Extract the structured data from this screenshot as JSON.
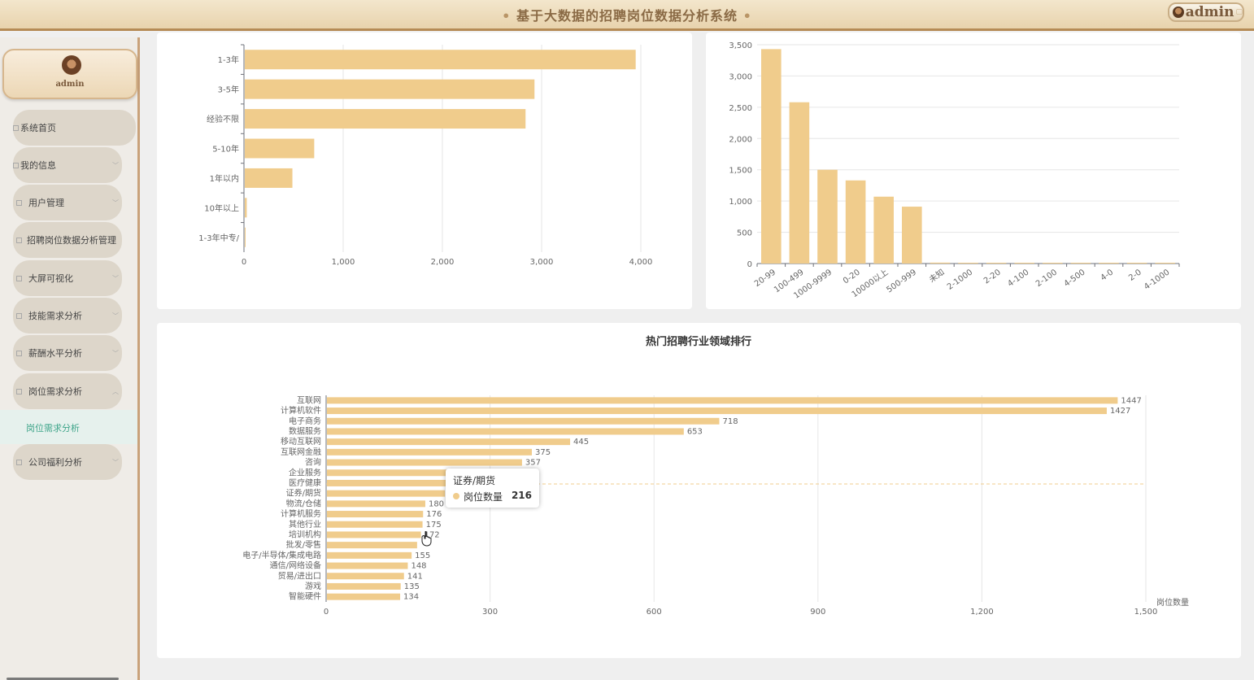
{
  "header": {
    "title": "基于大数据的招聘岗位数据分析系统",
    "dot": "•",
    "user": "admin",
    "user_caret": "▢"
  },
  "sidebar": {
    "user": {
      "name": "admin"
    },
    "menu": [
      {
        "label": "系统首页",
        "chevron": ""
      },
      {
        "label": "我的信息",
        "chevron": "﹀"
      },
      {
        "label": "用户管理",
        "chevron": "﹀"
      },
      {
        "label": "招聘岗位数据分析管理",
        "chevron": ""
      },
      {
        "label": "大屏可视化",
        "chevron": "﹀"
      },
      {
        "label": "技能需求分析",
        "chevron": "﹀"
      },
      {
        "label": "薪酬水平分析",
        "chevron": "﹀"
      },
      {
        "label": "岗位需求分析",
        "chevron": "︿"
      },
      {
        "label": "公司福利分析",
        "chevron": "﹀"
      }
    ],
    "submenu": {
      "label": "岗位需求分析"
    }
  },
  "colors": {
    "bar": "#f0cc8c",
    "accent": "#3fa58a"
  },
  "chart_data": [
    {
      "type": "bar",
      "orientation": "horizontal",
      "title": "",
      "categories": [
        "1-3年",
        "3-5年",
        "经验不限",
        "5-10年",
        "1年以内",
        "10年以上",
        "1-3年中专/"
      ],
      "values": [
        3940,
        2920,
        2830,
        700,
        480,
        20,
        8
      ],
      "xlim": [
        0,
        4000
      ],
      "ticks": [
        "0",
        "1,000",
        "2,000",
        "3,000",
        "4,000"
      ],
      "tick_values": [
        0,
        1000,
        2000,
        3000,
        4000
      ]
    },
    {
      "type": "bar",
      "title": "",
      "categories": [
        "20-99",
        "100-499",
        "1000-9999",
        "0-20",
        "10000以上",
        "500-999",
        "未知",
        "2-1000",
        "2-20",
        "4-100",
        "2-100",
        "4-500",
        "4-0",
        "2-0",
        "4-1000"
      ],
      "values": [
        3430,
        2580,
        1500,
        1330,
        1070,
        910,
        15,
        8,
        6,
        5,
        4,
        3,
        2,
        2,
        1
      ],
      "ylim": [
        0,
        3500
      ],
      "ticks": [
        "0",
        "500",
        "1,000",
        "1,500",
        "2,000",
        "2,500",
        "3,000",
        "3,500"
      ],
      "tick_values": [
        0,
        500,
        1000,
        1500,
        2000,
        2500,
        3000,
        3500
      ]
    },
    {
      "type": "bar",
      "orientation": "horizontal",
      "title": "热门招聘行业领域排行",
      "xlabel": "岗位数量",
      "series_name": "岗位数量",
      "categories": [
        "互联网",
        "计算机软件",
        "电子商务",
        "数据服务",
        "移动互联网",
        "互联网金融",
        "咨询",
        "企业服务",
        "医疗健康",
        "证券/期货",
        "物流/仓储",
        "计算机服务",
        "其他行业",
        "培训机构",
        "批发/零售",
        "电子/半导体/集成电路",
        "通信/网络设备",
        "贸易/进出口",
        "游戏",
        "智能硬件"
      ],
      "values": [
        1447,
        1427,
        718,
        653,
        445,
        375,
        357,
        232,
        225,
        216,
        180,
        176,
        175,
        172,
        165,
        155,
        148,
        141,
        135,
        134
      ],
      "value_labels": [
        "1447",
        "1427",
        "718",
        "653",
        "445",
        "375",
        "357",
        "",
        "",
        "",
        "180",
        "176",
        "175",
        "172",
        "",
        "155",
        "148",
        "141",
        "135",
        "134"
      ],
      "xlim": [
        0,
        1500
      ],
      "ticks": [
        "0",
        "300",
        "600",
        "900",
        "1,200",
        "1,500"
      ],
      "tick_values": [
        0,
        300,
        600,
        900,
        1200,
        1500
      ],
      "tooltip": {
        "category": "证券/期货",
        "series": "岗位数量",
        "value": "216"
      }
    }
  ]
}
